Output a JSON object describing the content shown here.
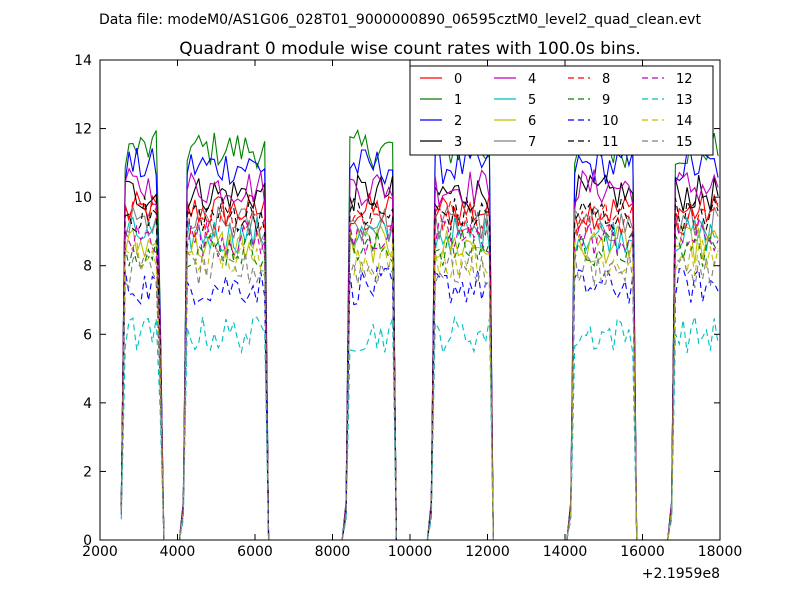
{
  "suptitle": "Data file: modeM0/AS1G06_028T01_9000000890_06595cztM0_level2_quad_clean.evt",
  "chart_data": {
    "type": "line",
    "title": "Quadrant 0 module wise count rates with 100.0s bins.",
    "xlabel": "",
    "ylabel": "",
    "x_offset_label": "+2.1959e8",
    "xlim": [
      2000,
      18000
    ],
    "ylim": [
      0,
      14
    ],
    "x_ticks": [
      2000,
      4000,
      6000,
      8000,
      10000,
      12000,
      14000,
      16000,
      18000
    ],
    "y_ticks": [
      0,
      2,
      4,
      6,
      8,
      10,
      12,
      14
    ],
    "x_tick_labels": [
      "2000",
      "4000",
      "6000",
      "8000",
      "10000",
      "12000",
      "14000",
      "16000",
      "18000"
    ],
    "y_tick_labels": [
      "0",
      "2",
      "4",
      "6",
      "8",
      "10",
      "12",
      "14"
    ],
    "grid": false,
    "legend_position": "top-right",
    "legend_columns": 4,
    "on_segments": [
      [
        2600,
        3550
      ],
      [
        4200,
        6300
      ],
      [
        8400,
        9600
      ],
      [
        10600,
        12100
      ],
      [
        14200,
        15800
      ],
      [
        16800,
        18000
      ]
    ],
    "series": [
      {
        "name": "0",
        "level": 9.6,
        "color": "#ff0000",
        "dash": "solid"
      },
      {
        "name": "1",
        "level": 11.4,
        "color": "#008000",
        "dash": "solid"
      },
      {
        "name": "2",
        "level": 10.9,
        "color": "#0000ff",
        "dash": "solid"
      },
      {
        "name": "3",
        "level": 10.1,
        "color": "#000000",
        "dash": "solid"
      },
      {
        "name": "4",
        "level": 10.3,
        "color": "#bf00bf",
        "dash": "solid"
      },
      {
        "name": "5",
        "level": 8.9,
        "color": "#00bfbf",
        "dash": "solid"
      },
      {
        "name": "6",
        "level": 8.6,
        "color": "#bfbf00",
        "dash": "solid"
      },
      {
        "name": "7",
        "level": 9.2,
        "color": "#808080",
        "dash": "solid"
      },
      {
        "name": "8",
        "level": 9.4,
        "color": "#ff0000",
        "dash": "dashed"
      },
      {
        "name": "9",
        "level": 8.5,
        "color": "#008000",
        "dash": "dashed"
      },
      {
        "name": "10",
        "level": 7.4,
        "color": "#0000ff",
        "dash": "dashed"
      },
      {
        "name": "11",
        "level": 9.5,
        "color": "#000000",
        "dash": "dashed"
      },
      {
        "name": "12",
        "level": 8.8,
        "color": "#bf00bf",
        "dash": "dashed"
      },
      {
        "name": "13",
        "level": 6.0,
        "color": "#00bfbf",
        "dash": "dashed"
      },
      {
        "name": "14",
        "level": 8.2,
        "color": "#bfbf00",
        "dash": "dashed"
      },
      {
        "name": "15",
        "level": 7.9,
        "color": "#808080",
        "dash": "dashed"
      }
    ]
  }
}
